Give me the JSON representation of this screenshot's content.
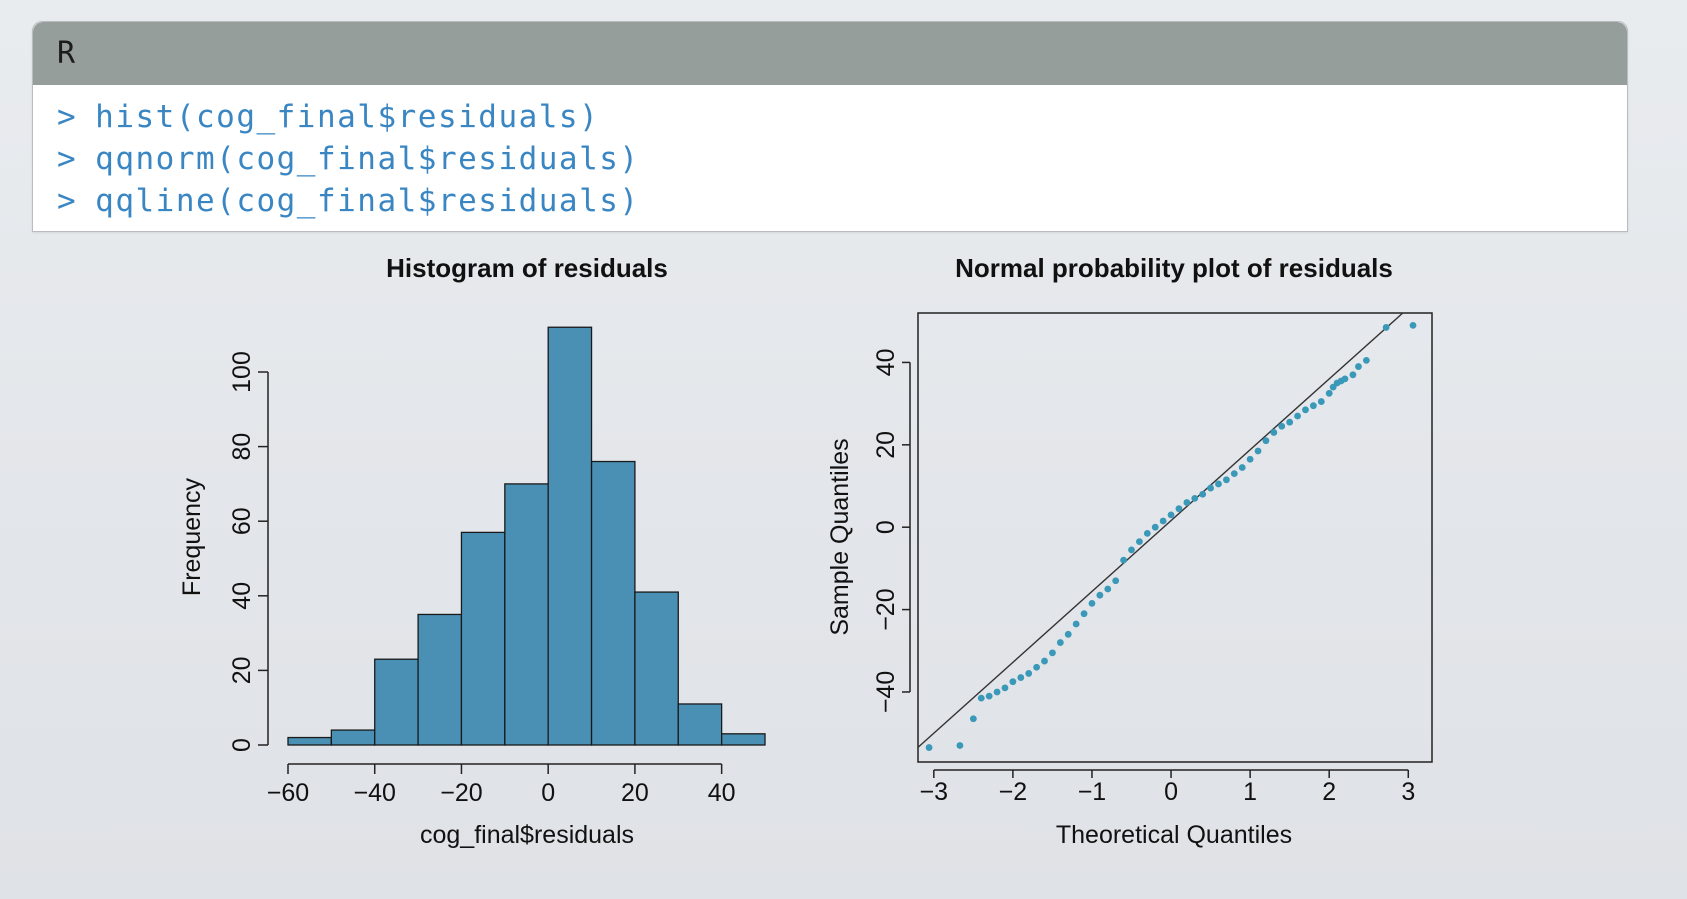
{
  "code_panel": {
    "language": "R",
    "lines": [
      {
        "prompt": ">",
        "code": "hist(cog_final$residuals)"
      },
      {
        "prompt": ">",
        "code": "qqnorm(cog_final$residuals)"
      },
      {
        "prompt": ">",
        "code": "qqline(cog_final$residuals)"
      }
    ]
  },
  "colors": {
    "bar_fill": "#4a90b4",
    "point_color": "#3a98b8",
    "code_text": "#3a86c3",
    "header_bar": "#959e9b"
  },
  "chart_data": [
    {
      "type": "bar",
      "title": "Histogram of residuals",
      "xlabel": "cog_final$residuals",
      "ylabel": "Frequency",
      "bins": [
        [
          -60,
          -50
        ],
        [
          -50,
          -40
        ],
        [
          -40,
          -30
        ],
        [
          -30,
          -20
        ],
        [
          -20,
          -10
        ],
        [
          -10,
          0
        ],
        [
          0,
          10
        ],
        [
          10,
          20
        ],
        [
          20,
          30
        ],
        [
          30,
          40
        ],
        [
          40,
          50
        ]
      ],
      "values": [
        2,
        4,
        23,
        35,
        57,
        70,
        112,
        76,
        41,
        11,
        3
      ],
      "xlim": [
        -60,
        50
      ],
      "ylim": [
        0,
        100
      ],
      "xticks": [
        -60,
        -40,
        -20,
        0,
        20,
        40
      ],
      "xtick_labels": [
        "−60",
        "−40",
        "−20",
        "0",
        "20",
        "40"
      ],
      "yticks": [
        0,
        20,
        40,
        60,
        80,
        100
      ],
      "ytick_labels": [
        "0",
        "20",
        "40",
        "60",
        "80",
        "100"
      ],
      "grid": false
    },
    {
      "type": "scatter",
      "title": "Normal probability plot of residuals",
      "xlabel": "Theoretical Quantiles",
      "ylabel": "Sample Quantiles",
      "xlim": [
        -3.2,
        3.3
      ],
      "ylim": [
        -57,
        52
      ],
      "xticks": [
        -3,
        -2,
        -1,
        0,
        1,
        2,
        3
      ],
      "xtick_labels": [
        "−3",
        "−2",
        "−1",
        "0",
        "1",
        "2",
        "3"
      ],
      "yticks": [
        -40,
        -20,
        0,
        20,
        40
      ],
      "ytick_labels": [
        "−40",
        "−20",
        "0",
        "20",
        "40"
      ],
      "grid": false,
      "reference_line": {
        "intercept": 1.6,
        "slope": 17.2
      },
      "points": [
        [
          -3.06,
          -53.5
        ],
        [
          -2.67,
          -53.0
        ],
        [
          -2.5,
          -46.5
        ],
        [
          -2.4,
          -41.5
        ],
        [
          -2.3,
          -41.0
        ],
        [
          -2.2,
          -40.0
        ],
        [
          -2.1,
          -39.0
        ],
        [
          -2.0,
          -37.5
        ],
        [
          -1.9,
          -36.5
        ],
        [
          -1.8,
          -35.5
        ],
        [
          -1.7,
          -34.0
        ],
        [
          -1.6,
          -32.5
        ],
        [
          -1.5,
          -30.5
        ],
        [
          -1.4,
          -28.0
        ],
        [
          -1.3,
          -26.0
        ],
        [
          -1.2,
          -23.5
        ],
        [
          -1.1,
          -21.0
        ],
        [
          -1.0,
          -18.5
        ],
        [
          -0.9,
          -16.5
        ],
        [
          -0.8,
          -15.0
        ],
        [
          -0.7,
          -13.0
        ],
        [
          -0.6,
          -8.0
        ],
        [
          -0.5,
          -5.5
        ],
        [
          -0.4,
          -3.5
        ],
        [
          -0.3,
          -1.5
        ],
        [
          -0.2,
          0.0
        ],
        [
          -0.1,
          1.5
        ],
        [
          0.0,
          3.0
        ],
        [
          0.1,
          4.5
        ],
        [
          0.2,
          6.0
        ],
        [
          0.3,
          7.0
        ],
        [
          0.4,
          8.0
        ],
        [
          0.5,
          9.5
        ],
        [
          0.6,
          10.5
        ],
        [
          0.7,
          11.5
        ],
        [
          0.8,
          13.0
        ],
        [
          0.9,
          14.5
        ],
        [
          1.0,
          16.5
        ],
        [
          1.1,
          18.5
        ],
        [
          1.2,
          21.0
        ],
        [
          1.3,
          23.0
        ],
        [
          1.4,
          24.5
        ],
        [
          1.5,
          25.5
        ],
        [
          1.6,
          27.0
        ],
        [
          1.7,
          28.5
        ],
        [
          1.8,
          29.5
        ],
        [
          1.9,
          30.5
        ],
        [
          2.0,
          32.5
        ],
        [
          2.05,
          34.0
        ],
        [
          2.1,
          35.0
        ],
        [
          2.15,
          35.5
        ],
        [
          2.2,
          36.0
        ],
        [
          2.3,
          37.0
        ],
        [
          2.37,
          39.0
        ],
        [
          2.47,
          40.5
        ],
        [
          2.72,
          48.5
        ],
        [
          3.06,
          49.0
        ]
      ]
    }
  ]
}
